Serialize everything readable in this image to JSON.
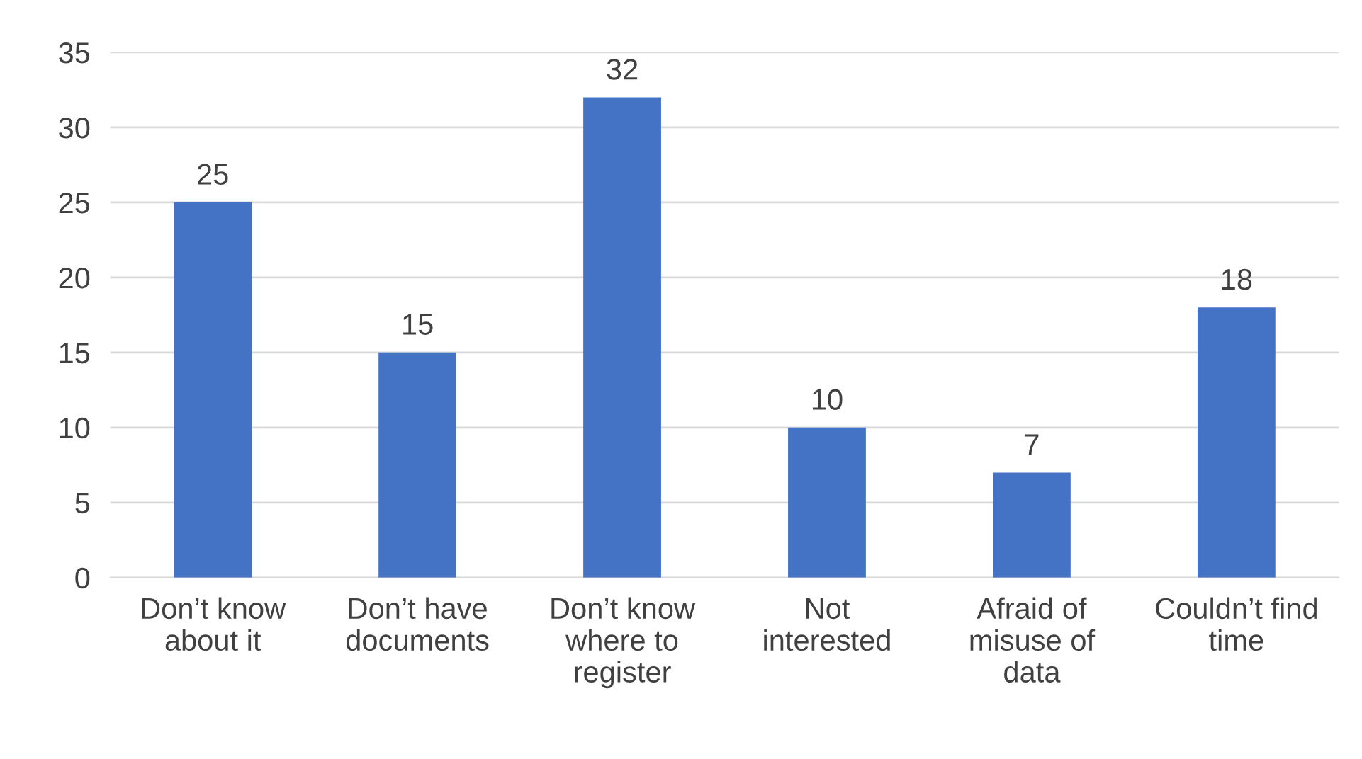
{
  "chart_data": {
    "type": "bar",
    "categories": [
      "Don’t know\nabout it",
      "Don’t have\ndocuments",
      "Don’t know\nwhere to\nregister",
      "Not\ninterested",
      "Afraid of\nmisuse of\ndata",
      "Couldn’t find\ntime"
    ],
    "values": [
      25,
      15,
      32,
      10,
      7,
      18
    ],
    "color": "#4472c4",
    "ylim": [
      0,
      35
    ],
    "yticks": [
      0,
      5,
      10,
      15,
      20,
      25,
      30,
      35
    ],
    "grid": "y",
    "data_labels": true,
    "legend": false
  }
}
